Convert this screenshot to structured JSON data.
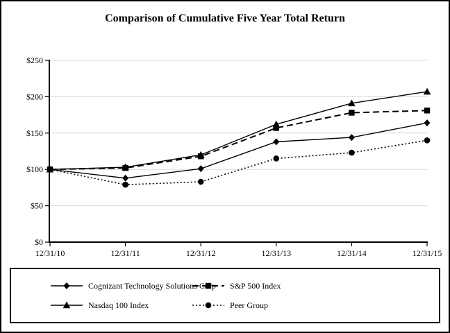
{
  "chart_data": {
    "type": "line",
    "title": "Comparison of Cumulative Five Year Total Return",
    "x_labels": [
      "12/31/10",
      "12/31/11",
      "12/31/12",
      "12/31/13",
      "12/31/14",
      "12/31/15"
    ],
    "series": [
      {
        "name": "Cognizant Technology Solutions Corp",
        "line_style": "solid",
        "marker": "diamond",
        "values": [
          100,
          88,
          101,
          138,
          144,
          164
        ]
      },
      {
        "name": "S&P 500 Index",
        "line_style": "dashed",
        "marker": "square",
        "values": [
          100,
          102,
          118,
          157,
          178,
          181
        ]
      },
      {
        "name": "Nasdaq 100 Index",
        "line_style": "solid",
        "marker": "triangle",
        "values": [
          100,
          103,
          120,
          162,
          191,
          207
        ]
      },
      {
        "name": "Peer Group",
        "line_style": "dotted",
        "marker": "circle",
        "values": [
          100,
          79,
          83,
          115,
          123,
          140
        ]
      }
    ],
    "ylim": [
      0,
      250
    ],
    "ytick_step": 50,
    "ytick_prefix": "$",
    "grid": true,
    "legend_position": "bottom-box",
    "colors": {
      "series": "#000000",
      "grid": "#d9d9d9",
      "axis": "#000000",
      "background": "#ffffff",
      "frame_border": "#000000"
    }
  }
}
